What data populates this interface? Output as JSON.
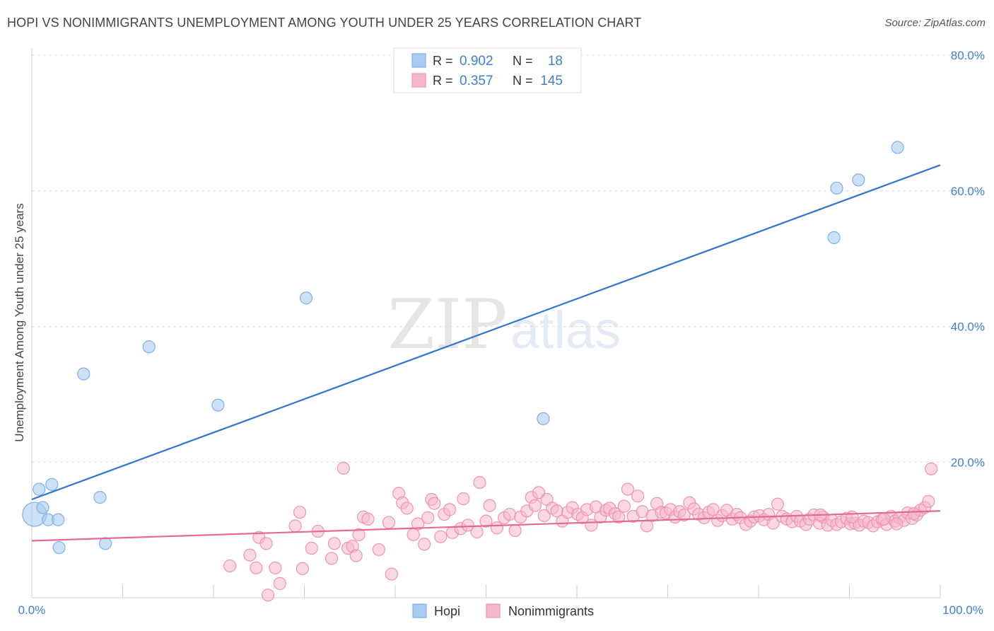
{
  "header": {
    "title": "HOPI VS NONIMMIGRANTS UNEMPLOYMENT AMONG YOUTH UNDER 25 YEARS CORRELATION CHART",
    "source": "Source: ZipAtlas.com"
  },
  "watermark": {
    "zip": "ZIP",
    "atlas": "atlas"
  },
  "colors": {
    "hopi_fill": "#aaccf2",
    "hopi_stroke": "#7fb0e6",
    "hopi_line": "#2f74d0",
    "nonimm_fill": "#f6b8cb",
    "nonimm_stroke": "#ee93b0",
    "nonimm_line": "#e46a95",
    "tick_label": "#3f7fd0",
    "grid": "#dddddd"
  },
  "legend_top": {
    "rows": [
      {
        "r_label": "R = ",
        "r_value": "0.902",
        "n_label": "N = ",
        "n_value": "18",
        "series": "hopi"
      },
      {
        "r_label": "R = ",
        "r_value": "0.357",
        "n_label": "N = ",
        "n_value": "145",
        "series": "nonimm"
      }
    ]
  },
  "legend_bottom": {
    "items": [
      "Hopi",
      "Nonimmigrants"
    ]
  },
  "chart_data": {
    "type": "scatter",
    "title": "HOPI VS NONIMMIGRANTS UNEMPLOYMENT AMONG YOUTH UNDER 25 YEARS CORRELATION CHART",
    "xlabel": "",
    "ylabel": "Unemployment Among Youth under 25 years",
    "xlim": [
      0,
      100
    ],
    "ylim": [
      0,
      80
    ],
    "x_tick_labels": [
      "0.0%",
      "100.0%"
    ],
    "y_tick_values": [
      20,
      40,
      60,
      80
    ],
    "y_tick_labels": [
      "20.0%",
      "40.0%",
      "60.0%",
      "80.0%"
    ],
    "grid": true,
    "legend_position": "top-center",
    "series": [
      {
        "name": "Hopi",
        "r": 0.902,
        "n": 18,
        "trend": {
          "x": [
            0,
            100
          ],
          "y": [
            14.5,
            63.8
          ]
        },
        "points": [
          [
            0.3,
            12.3
          ],
          [
            0.8,
            16.0
          ],
          [
            1.2,
            13.3
          ],
          [
            1.8,
            11.5
          ],
          [
            2.2,
            16.7
          ],
          [
            2.9,
            11.5
          ],
          [
            3.0,
            7.4
          ],
          [
            5.7,
            33.0
          ],
          [
            7.5,
            14.8
          ],
          [
            8.1,
            8.0
          ],
          [
            12.9,
            37.0
          ],
          [
            20.5,
            28.4
          ],
          [
            30.2,
            44.2
          ],
          [
            56.3,
            26.4
          ],
          [
            88.3,
            53.1
          ],
          [
            88.6,
            60.4
          ],
          [
            91.0,
            61.6
          ],
          [
            95.3,
            66.4
          ]
        ]
      },
      {
        "name": "Nonimmigrants",
        "r": 0.357,
        "n": 145,
        "trend": {
          "x": [
            0,
            100
          ],
          "y": [
            8.4,
            12.8
          ]
        },
        "points": [
          [
            21.8,
            4.7
          ],
          [
            24.0,
            6.3
          ],
          [
            24.7,
            4.4
          ],
          [
            25.0,
            8.9
          ],
          [
            25.8,
            8.0
          ],
          [
            26.8,
            4.4
          ],
          [
            27.3,
            2.1
          ],
          [
            26.0,
            0.4
          ],
          [
            29.0,
            10.6
          ],
          [
            29.5,
            12.6
          ],
          [
            29.8,
            4.3
          ],
          [
            30.8,
            7.3
          ],
          [
            31.5,
            9.8
          ],
          [
            33.0,
            5.8
          ],
          [
            33.3,
            8.0
          ],
          [
            34.3,
            19.1
          ],
          [
            34.8,
            7.3
          ],
          [
            35.3,
            7.6
          ],
          [
            35.7,
            6.2
          ],
          [
            36.0,
            9.3
          ],
          [
            36.5,
            11.9
          ],
          [
            37.0,
            11.6
          ],
          [
            38.2,
            7.1
          ],
          [
            39.3,
            11.1
          ],
          [
            39.6,
            3.5
          ],
          [
            40.4,
            15.4
          ],
          [
            40.8,
            14.0
          ],
          [
            41.3,
            13.2
          ],
          [
            42.0,
            9.3
          ],
          [
            42.5,
            10.9
          ],
          [
            43.2,
            7.9
          ],
          [
            44.0,
            14.5
          ],
          [
            44.3,
            13.9
          ],
          [
            45.0,
            9.0
          ],
          [
            45.4,
            12.3
          ],
          [
            46.0,
            13.0
          ],
          [
            46.3,
            9.6
          ],
          [
            47.2,
            10.2
          ],
          [
            47.5,
            14.6
          ],
          [
            48.0,
            10.7
          ],
          [
            49.0,
            9.7
          ],
          [
            49.3,
            17.0
          ],
          [
            50.0,
            11.3
          ],
          [
            50.4,
            13.6
          ],
          [
            51.2,
            10.3
          ],
          [
            52.0,
            11.8
          ],
          [
            52.6,
            12.3
          ],
          [
            53.2,
            9.9
          ],
          [
            53.8,
            11.9
          ],
          [
            54.5,
            12.8
          ],
          [
            55.0,
            14.8
          ],
          [
            55.4,
            13.6
          ],
          [
            55.8,
            15.5
          ],
          [
            56.4,
            12.1
          ],
          [
            56.7,
            14.5
          ],
          [
            57.3,
            13.2
          ],
          [
            57.8,
            12.8
          ],
          [
            58.4,
            11.3
          ],
          [
            59.0,
            12.6
          ],
          [
            59.5,
            13.3
          ],
          [
            60.1,
            12.3
          ],
          [
            60.6,
            11.8
          ],
          [
            61.1,
            13.0
          ],
          [
            61.6,
            10.7
          ],
          [
            62.1,
            13.4
          ],
          [
            62.6,
            11.9
          ],
          [
            63.2,
            12.9
          ],
          [
            63.6,
            13.2
          ],
          [
            64.2,
            12.4
          ],
          [
            64.6,
            11.9
          ],
          [
            65.2,
            13.5
          ],
          [
            65.6,
            16.0
          ],
          [
            66.2,
            12.0
          ],
          [
            66.7,
            15.0
          ],
          [
            67.2,
            12.7
          ],
          [
            67.7,
            10.6
          ],
          [
            68.3,
            12.1
          ],
          [
            68.8,
            13.9
          ],
          [
            69.3,
            12.6
          ],
          [
            69.8,
            12.5
          ],
          [
            70.3,
            13.0
          ],
          [
            70.8,
            11.9
          ],
          [
            71.3,
            12.7
          ],
          [
            71.8,
            12.2
          ],
          [
            72.4,
            14.0
          ],
          [
            72.9,
            13.1
          ],
          [
            73.4,
            12.3
          ],
          [
            74.0,
            11.8
          ],
          [
            74.5,
            12.6
          ],
          [
            75.0,
            13.0
          ],
          [
            75.5,
            11.4
          ],
          [
            76.0,
            12.1
          ],
          [
            76.5,
            12.9
          ],
          [
            77.1,
            11.6
          ],
          [
            77.6,
            12.3
          ],
          [
            78.0,
            11.8
          ],
          [
            78.6,
            10.8
          ],
          [
            79.1,
            11.3
          ],
          [
            79.5,
            11.9
          ],
          [
            80.1,
            12.1
          ],
          [
            80.6,
            11.5
          ],
          [
            81.1,
            12.3
          ],
          [
            81.6,
            11.0
          ],
          [
            82.1,
            13.8
          ],
          [
            82.6,
            12.0
          ],
          [
            83.1,
            11.6
          ],
          [
            83.7,
            11.2
          ],
          [
            84.2,
            12.0
          ],
          [
            84.6,
            11.3
          ],
          [
            85.2,
            10.8
          ],
          [
            85.6,
            11.6
          ],
          [
            86.1,
            12.2
          ],
          [
            86.7,
            11.0
          ],
          [
            87.1,
            11.9
          ],
          [
            87.6,
            10.7
          ],
          [
            88.1,
            11.4
          ],
          [
            88.6,
            10.8
          ],
          [
            89.1,
            11.2
          ],
          [
            89.7,
            11.7
          ],
          [
            90.1,
            10.9
          ],
          [
            90.6,
            11.0
          ],
          [
            91.1,
            10.7
          ],
          [
            91.6,
            11.3
          ],
          [
            92.1,
            11.1
          ],
          [
            92.6,
            10.6
          ],
          [
            93.1,
            11.2
          ],
          [
            93.6,
            11.5
          ],
          [
            94.1,
            10.8
          ],
          [
            94.6,
            12.0
          ],
          [
            95.0,
            11.3
          ],
          [
            95.5,
            11.8
          ],
          [
            96.0,
            11.4
          ],
          [
            96.4,
            12.5
          ],
          [
            96.9,
            11.7
          ],
          [
            97.4,
            12.2
          ],
          [
            97.8,
            12.9
          ],
          [
            98.3,
            13.3
          ],
          [
            98.7,
            14.2
          ],
          [
            99.0,
            19.0
          ],
          [
            86.8,
            12.2
          ],
          [
            90.3,
            11.9
          ],
          [
            93.8,
            11.6
          ],
          [
            95.2,
            10.9
          ],
          [
            97.1,
            12.4
          ],
          [
            43.6,
            11.8
          ]
        ]
      }
    ]
  }
}
